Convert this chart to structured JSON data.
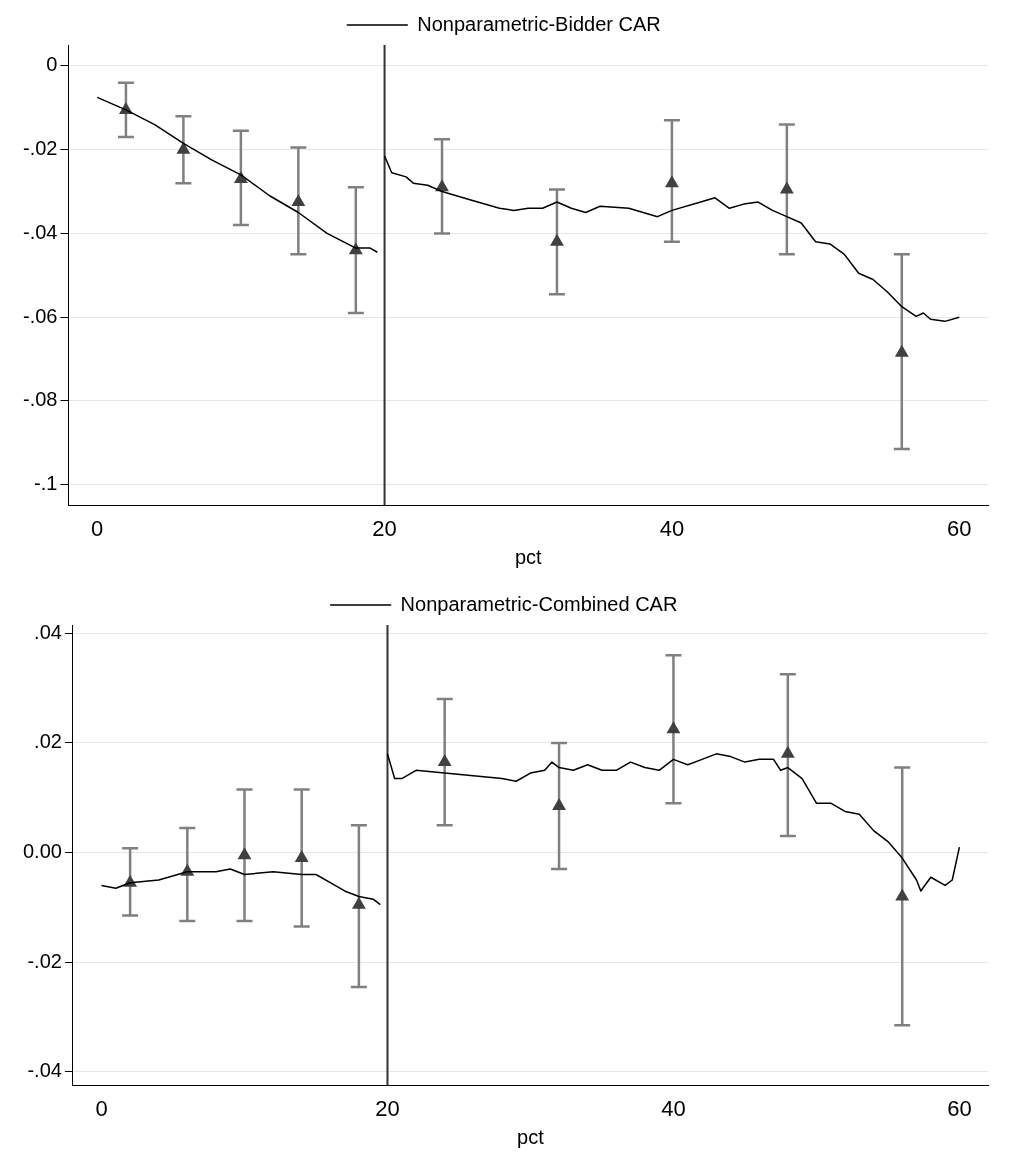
{
  "chart_data": [
    {
      "type": "line",
      "xlabel": "pct",
      "xlim": [
        -2,
        62
      ],
      "xticks": [
        0,
        20,
        40,
        60
      ],
      "ylim": [
        -0.105,
        0.005
      ],
      "yticks": [
        {
          "value": 0,
          "label": "0"
        },
        {
          "value": -0.02,
          "label": "-.02"
        },
        {
          "value": -0.04,
          "label": "-.04"
        },
        {
          "value": -0.06,
          "label": "-.06"
        },
        {
          "value": -0.08,
          "label": "-.08"
        },
        {
          "value": -0.1,
          "label": "-.1"
        }
      ],
      "grid": "y",
      "legend": "top",
      "ref_lines": [
        {
          "axis": "x",
          "value": 20,
          "color": "#333333"
        }
      ],
      "series": [
        {
          "name": "Nonparametric-Bidder CAR",
          "color": "#000000",
          "marker": "none",
          "x": [
            0,
            1,
            2,
            4,
            6,
            8,
            10,
            12,
            14,
            16,
            18,
            19,
            19.5,
            19.75,
            20,
            20.5,
            21.5,
            22,
            23,
            24,
            26,
            28,
            29,
            30,
            31,
            32,
            33,
            34,
            35,
            37,
            39,
            40,
            42,
            43,
            44,
            45,
            46,
            47,
            48,
            49,
            50,
            51,
            52,
            53,
            54,
            55,
            56,
            57,
            57.5,
            58,
            59,
            60
          ],
          "values": [
            -0.0075,
            -0.009,
            -0.0105,
            -0.014,
            -0.0185,
            -0.0225,
            -0.026,
            -0.031,
            -0.035,
            -0.04,
            -0.0435,
            -0.0435,
            -0.0445,
            null,
            -0.0215,
            -0.0255,
            -0.0265,
            -0.028,
            -0.0285,
            -0.03,
            -0.032,
            -0.034,
            -0.0345,
            -0.034,
            -0.034,
            -0.0325,
            -0.034,
            -0.035,
            -0.0335,
            -0.034,
            -0.036,
            -0.0345,
            -0.0325,
            -0.0315,
            -0.034,
            -0.033,
            -0.0325,
            -0.0345,
            -0.036,
            -0.0375,
            -0.042,
            -0.0425,
            -0.045,
            -0.0495,
            -0.051,
            -0.054,
            -0.0575,
            -0.0598,
            -0.059,
            -0.0605,
            -0.061,
            -0.06
          ]
        },
        {
          "type": "scatter",
          "color": "#404040",
          "marker": "triangle",
          "x": [
            2,
            6,
            10,
            14,
            18,
            24,
            32,
            40,
            48,
            56
          ],
          "values": [
            -0.0105,
            -0.02,
            -0.027,
            -0.0325,
            -0.044,
            -0.029,
            -0.042,
            -0.028,
            -0.0295,
            -0.0685
          ],
          "errors": [
            [
              -0.017,
              -0.004
            ],
            [
              -0.028,
              -0.012
            ],
            [
              -0.038,
              -0.0155
            ],
            [
              -0.045,
              -0.0195
            ],
            [
              -0.059,
              -0.029
            ],
            [
              -0.04,
              -0.0175
            ],
            [
              -0.0545,
              -0.0295
            ],
            [
              -0.042,
              -0.013
            ],
            [
              -0.045,
              -0.014
            ],
            [
              -0.0915,
              -0.045
            ]
          ]
        }
      ]
    },
    {
      "type": "line",
      "xlabel": "pct",
      "xlim": [
        -2,
        62
      ],
      "xticks": [
        0,
        20,
        40,
        60
      ],
      "ylim": [
        -0.0425,
        0.0415
      ],
      "yticks": [
        {
          "value": 0.04,
          "label": ".04"
        },
        {
          "value": 0.02,
          "label": ".02"
        },
        {
          "value": 0,
          "label": "0.00"
        },
        {
          "value": -0.02,
          "label": "-.02"
        },
        {
          "value": -0.04,
          "label": "-.04"
        }
      ],
      "grid": "y",
      "legend": "top",
      "ref_lines": [
        {
          "axis": "x",
          "value": 20,
          "color": "#333333"
        }
      ],
      "series": [
        {
          "name": "Nonparametric-Combined CAR",
          "color": "#000000",
          "marker": "none",
          "x": [
            0,
            1,
            2,
            4,
            6,
            8,
            9,
            10,
            12,
            14,
            15,
            16,
            17,
            18,
            19,
            19.5,
            19.75,
            20,
            20.5,
            21,
            22,
            24,
            26,
            28,
            29,
            30,
            31,
            31.5,
            32,
            33,
            34,
            35,
            36,
            37,
            38,
            39,
            40,
            41,
            42,
            43,
            44,
            45,
            46,
            47,
            47.5,
            48,
            49,
            50,
            51,
            52,
            53,
            54,
            55,
            56,
            57,
            57.3,
            58,
            59,
            59.5,
            60
          ],
          "values": [
            -0.006,
            -0.0065,
            -0.0055,
            -0.005,
            -0.0035,
            -0.0035,
            -0.003,
            -0.004,
            -0.0035,
            -0.004,
            -0.004,
            -0.0055,
            -0.007,
            -0.008,
            -0.0085,
            -0.0095,
            null,
            0.018,
            0.0135,
            0.0135,
            0.015,
            0.0145,
            0.014,
            0.0135,
            0.013,
            0.0145,
            0.015,
            0.0165,
            0.0155,
            0.015,
            0.016,
            0.015,
            0.015,
            0.0165,
            0.0155,
            0.015,
            0.017,
            0.016,
            0.017,
            0.018,
            0.0175,
            0.0165,
            0.017,
            0.017,
            0.015,
            0.0155,
            0.0135,
            0.009,
            0.009,
            0.0075,
            0.007,
            0.004,
            0.002,
            -0.001,
            -0.005,
            -0.007,
            -0.0045,
            -0.006,
            -0.005,
            0.001
          ]
        },
        {
          "type": "scatter",
          "color": "#404040",
          "marker": "triangle",
          "x": [
            2,
            6,
            10,
            14,
            18,
            24,
            32,
            40,
            48,
            56
          ],
          "values": [
            -0.0055,
            -0.0035,
            -0.0005,
            -0.001,
            -0.0095,
            0.0165,
            0.0085,
            0.0225,
            0.018,
            -0.008
          ],
          "errors": [
            [
              -0.0115,
              0.0008
            ],
            [
              -0.0125,
              0.0045
            ],
            [
              -0.0125,
              0.0115
            ],
            [
              -0.0135,
              0.0115
            ],
            [
              -0.0245,
              0.005
            ],
            [
              0.005,
              0.028
            ],
            [
              -0.003,
              0.02
            ],
            [
              0.009,
              0.036
            ],
            [
              0.003,
              0.0325
            ],
            [
              -0.0315,
              0.0155
            ]
          ]
        }
      ]
    }
  ]
}
